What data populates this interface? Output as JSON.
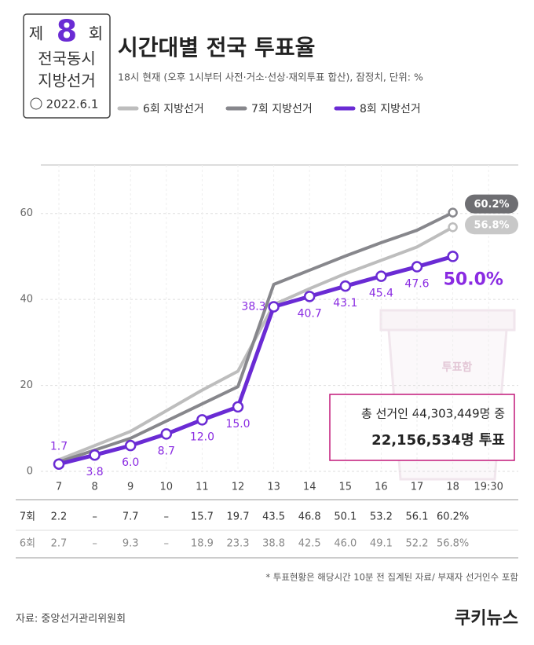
{
  "badge": {
    "prefix": "제",
    "number": "8",
    "suffix": "회",
    "line2": "전국동시",
    "line3": "지방선거",
    "date": "2022.6.1"
  },
  "chart_data": {
    "type": "line",
    "title": "시간대별 전국 투표율",
    "subtitle": "18시 현재 (오후 1시부터 사전·거소·선상·재외투표 합산), 잠정치,  단위: %",
    "categories": [
      "7",
      "8",
      "9",
      "10",
      "11",
      "12",
      "13",
      "14",
      "15",
      "16",
      "17",
      "18",
      "19:30"
    ],
    "ylim": [
      0,
      70
    ],
    "yticks": [
      0,
      20,
      40,
      60
    ],
    "grid": true,
    "series": [
      {
        "name": "6회 지방선거",
        "color": "#bdbdbd",
        "x": [
          "7",
          "9",
          "11",
          "12",
          "13",
          "14",
          "15",
          "16",
          "17",
          "18"
        ],
        "values": [
          2.7,
          9.3,
          18.9,
          23.3,
          38.8,
          42.5,
          46.0,
          49.1,
          52.2,
          56.8
        ],
        "end_label": "56.8%"
      },
      {
        "name": "7회 지방선거",
        "color": "#87878c",
        "x": [
          "7",
          "9",
          "11",
          "12",
          "13",
          "14",
          "15",
          "16",
          "17",
          "18"
        ],
        "values": [
          2.2,
          7.7,
          15.7,
          19.7,
          43.5,
          46.8,
          50.1,
          53.2,
          56.1,
          60.2
        ],
        "end_label": "60.2%"
      },
      {
        "name": "8회 지방선거",
        "color": "#6a2bd4",
        "x": [
          "7",
          "8",
          "9",
          "10",
          "11",
          "12",
          "13",
          "14",
          "15",
          "16",
          "17",
          "18"
        ],
        "values": [
          1.7,
          3.8,
          6.0,
          8.7,
          12.0,
          15.0,
          38.3,
          40.7,
          43.1,
          45.4,
          47.6,
          50.0
        ],
        "value_labels": [
          "1.7",
          "3.8",
          "6.0",
          "8.7",
          "12.0",
          "15.0",
          "38.3",
          "40.7",
          "43.1",
          "45.4",
          "47.6",
          "50.0%"
        ]
      }
    ],
    "annotation": {
      "line1": "총 선거인 44,303,449명 중",
      "line2": "22,156,534명 투표"
    },
    "illustration_label": "투표함"
  },
  "table": {
    "rows": [
      [
        "7회",
        "2.2",
        "–",
        "7.7",
        "–",
        "15.7",
        "19.7",
        "43.5",
        "46.8",
        "50.1",
        "53.2",
        "56.1",
        "60.2%"
      ],
      [
        "6회",
        "2.7",
        "–",
        "9.3",
        "–",
        "18.9",
        "23.3",
        "38.8",
        "42.5",
        "46.0",
        "49.1",
        "52.2",
        "56.8%"
      ]
    ]
  },
  "footnote": "* 투표현황은 해당시간 10분 전 집계된 자료/ 부재자 선거인수 포함",
  "source": "자료: 중앙선거관리위원회",
  "logo": "쿠키뉴스"
}
